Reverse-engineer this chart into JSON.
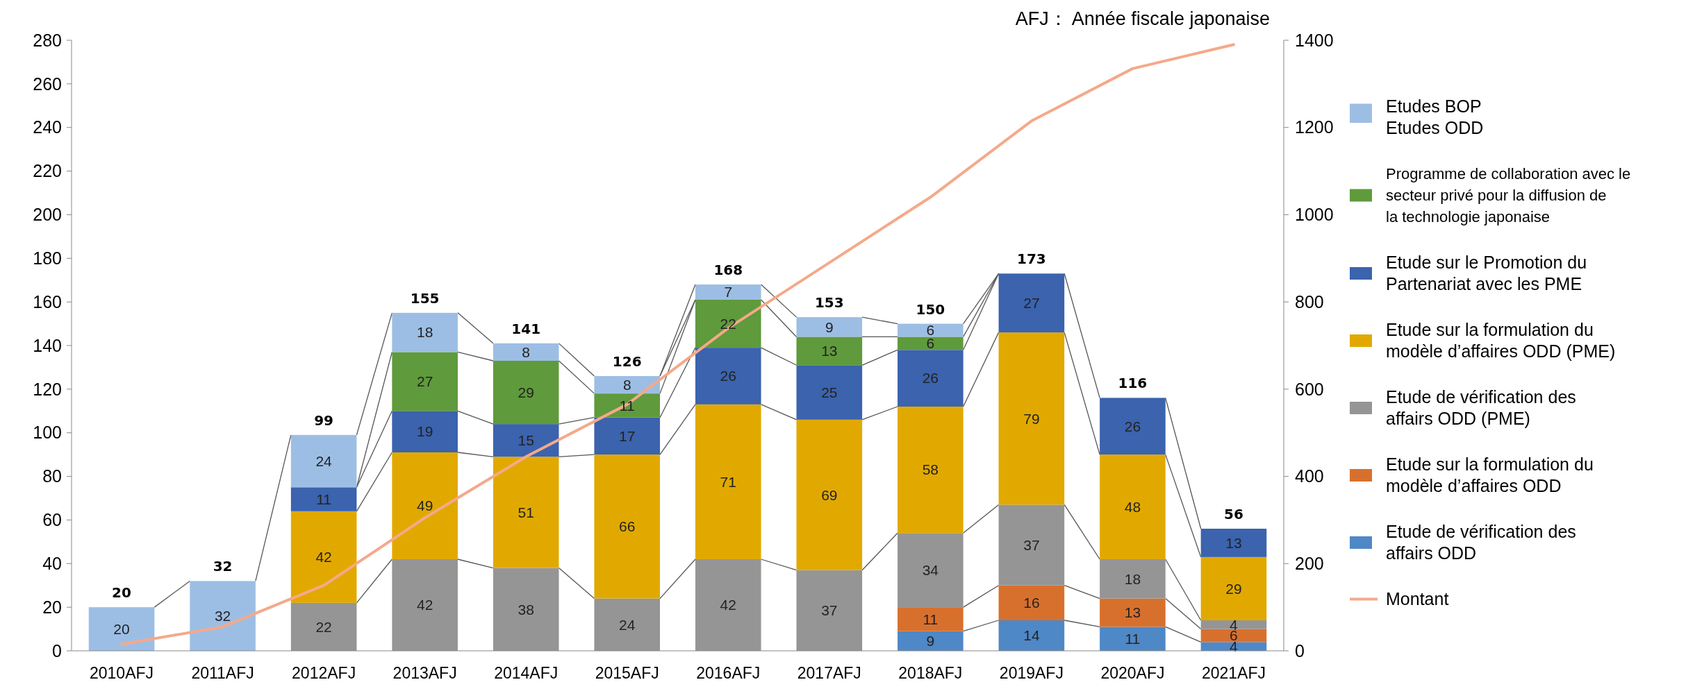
{
  "chart_data": {
    "type": "bar",
    "stacked": true,
    "categories": [
      "2010AFJ",
      "2011AFJ",
      "2012AFJ",
      "2013AFJ",
      "2014AFJ",
      "2015AFJ",
      "2016AFJ",
      "2017AFJ",
      "2018AFJ",
      "2019AFJ",
      "2020AFJ",
      "2021AFJ"
    ],
    "series": [
      {
        "name": "Etude de vérification des affairs ODD",
        "color": "#4f88c6",
        "values": [
          null,
          null,
          null,
          null,
          null,
          null,
          null,
          null,
          9,
          14,
          11,
          4
        ],
        "value_labels": [
          null,
          null,
          null,
          null,
          null,
          null,
          null,
          null,
          "9",
          "14",
          "11",
          "4"
        ]
      },
      {
        "name": "Etude sur la formulation du modèle d’affaires ODD",
        "color": "#d8702d",
        "values": [
          null,
          null,
          null,
          null,
          null,
          null,
          null,
          null,
          11,
          16,
          13,
          6
        ],
        "value_labels": [
          null,
          null,
          null,
          null,
          null,
          null,
          null,
          null,
          "11",
          "16",
          "13",
          "6"
        ]
      },
      {
        "name": "Etude de vérification des affairs ODD (PME)",
        "color": "#959595",
        "values": [
          null,
          null,
          22,
          42,
          38,
          24,
          42,
          37,
          34,
          37,
          18,
          4
        ],
        "value_labels": [
          null,
          null,
          "22",
          "42",
          "38",
          "24",
          "42",
          "37",
          "34",
          "37",
          "18",
          "4"
        ]
      },
      {
        "name": "Etude sur la formulation du modèle d’affaires ODD (PME)",
        "color": "#e1a900",
        "values": [
          null,
          null,
          42,
          49,
          51,
          66,
          71,
          69,
          58,
          79,
          48,
          29
        ],
        "value_labels": [
          null,
          null,
          "42",
          "49",
          "51",
          "66",
          "71",
          "69",
          "58",
          "79",
          "48",
          "29"
        ]
      },
      {
        "name": "Etude sur le Promotion du Partenariat avec les PME",
        "color": "#3b63ae",
        "values": [
          null,
          null,
          11,
          19,
          15,
          17,
          26,
          25,
          26,
          27,
          26,
          13
        ],
        "value_labels": [
          null,
          null,
          "11",
          "19",
          "15",
          "17",
          "26",
          "25",
          "26",
          "27",
          "26",
          "13"
        ]
      },
      {
        "name": "Programme de collaboration avec le secteur privé pour la diffusion de la technologie japonaise",
        "color": "#5f9a3c",
        "values": [
          null,
          null,
          null,
          27,
          29,
          11,
          22,
          13,
          6,
          null,
          null,
          null
        ],
        "value_labels": [
          null,
          null,
          null,
          "27",
          "29",
          "11",
          "22",
          "13",
          "6",
          null,
          null,
          null
        ]
      },
      {
        "name": "Etudes BOP",
        "color": "#9dbee4",
        "values": [
          20,
          32,
          24,
          18,
          8,
          8,
          null,
          null,
          null,
          null,
          null,
          null
        ],
        "value_labels": [
          "20",
          "32",
          "24",
          "18",
          "8",
          "8",
          null,
          null,
          null,
          null,
          null,
          null
        ]
      },
      {
        "name": "Etudes ODD",
        "color": "#9dbee4",
        "values": [
          null,
          null,
          null,
          null,
          null,
          null,
          7,
          9,
          6,
          null,
          null,
          null
        ],
        "value_labels": [
          null,
          null,
          null,
          null,
          null,
          null,
          "7",
          "9",
          "6",
          null,
          null,
          null
        ]
      },
      {
        "name": "Montant",
        "type": "line",
        "axis": "y2",
        "color": "#f4a98a",
        "values": [
          15,
          55,
          150,
          305,
          445,
          565,
          740,
          890,
          1040,
          1215,
          1335,
          1390
        ]
      }
    ],
    "ylim": [
      0,
      280
    ],
    "yticks": [
      0,
      20,
      40,
      60,
      80,
      100,
      120,
      140,
      160,
      180,
      200,
      220,
      240,
      260,
      280
    ],
    "y2lim": [
      0,
      1400
    ],
    "y2ticks": [
      0,
      200,
      400,
      600,
      800,
      1000,
      1200,
      1400
    ],
    "totals": [
      "20",
      "32",
      "99",
      "155",
      "141",
      "126",
      "168",
      "153",
      "150",
      "173",
      "116",
      "56"
    ],
    "legend": "right",
    "annotations": [
      "AFJ： Année fiscale japonaise"
    ]
  }
}
